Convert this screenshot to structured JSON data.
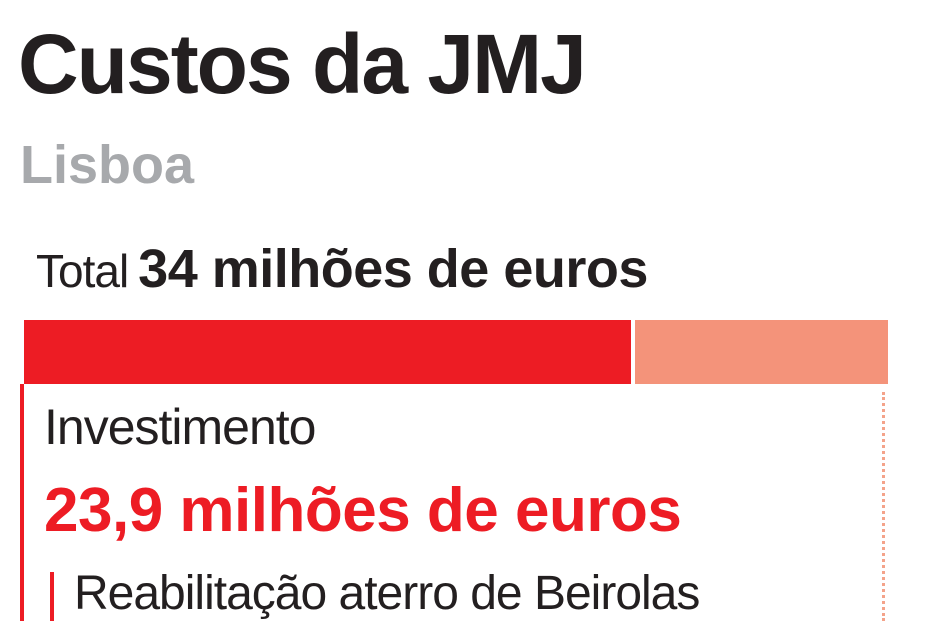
{
  "header": {
    "title": "Custos da JMJ",
    "subtitle": "Lisboa"
  },
  "total": {
    "label": "Total",
    "value": "34 milhões de euros"
  },
  "breakdown": {
    "section_label": "Investimento",
    "section_value": "23,9 milhões de euros",
    "item_label": "Reabilitação aterro de Beirolas"
  },
  "colors": {
    "investment": "#ed1c24",
    "other": "#f4937a",
    "title": "#231f20",
    "subtitle": "#a7a9ac"
  },
  "chart_data": {
    "type": "bar",
    "orientation": "horizontal-stacked",
    "title": "Custos da JMJ",
    "subtitle": "Lisboa",
    "unit": "milhões de euros",
    "total": 34,
    "series": [
      {
        "name": "Investimento",
        "value": 23.9,
        "color": "#ed1c24"
      },
      {
        "value": 10.1,
        "color": "#f4937a"
      }
    ]
  }
}
